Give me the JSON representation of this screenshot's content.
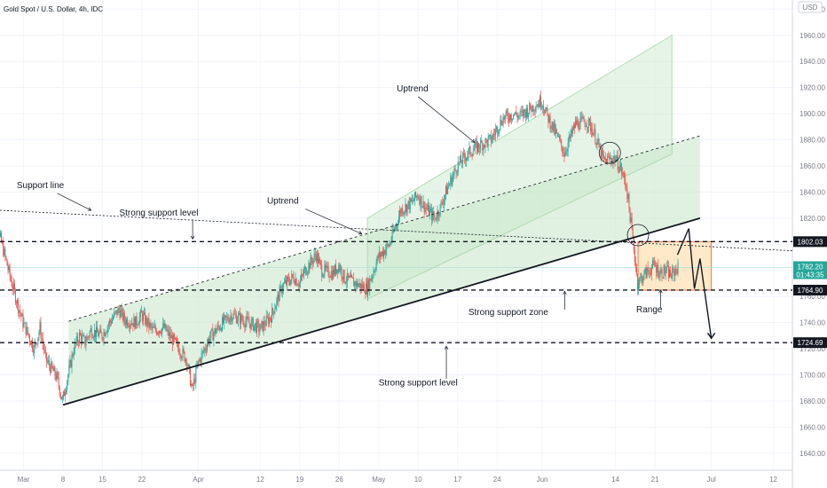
{
  "header": {
    "title": "Gold Spot / U.S. Dollar, 4h, IDC",
    "currency": "USD"
  },
  "chart_data": {
    "type": "candlestick",
    "symbol": "Gold Spot / U.S. Dollar",
    "timeframe": "4h",
    "ylim": [
      1627,
      1987
    ],
    "y_ticks": [
      1640,
      1660,
      1680,
      1700,
      1720,
      1740,
      1760,
      1780,
      1800,
      1820,
      1840,
      1860,
      1880,
      1900,
      1920,
      1940,
      1960,
      1980
    ],
    "x_ticks": [
      {
        "label": "Mar",
        "date": "2021-03-01"
      },
      {
        "label": "8",
        "date": "2021-03-08"
      },
      {
        "label": "15",
        "date": "2021-03-15"
      },
      {
        "label": "22",
        "date": "2021-03-22"
      },
      {
        "label": "Apr",
        "date": "2021-04-01"
      },
      {
        "label": "12",
        "date": "2021-04-12"
      },
      {
        "label": "19",
        "date": "2021-04-19"
      },
      {
        "label": "26",
        "date": "2021-04-26"
      },
      {
        "label": "May",
        "date": "2021-05-03"
      },
      {
        "label": "10",
        "date": "2021-05-10"
      },
      {
        "label": "17",
        "date": "2021-05-17"
      },
      {
        "label": "24",
        "date": "2021-05-24"
      },
      {
        "label": "Jun",
        "date": "2021-06-01"
      },
      {
        "label": "14",
        "date": "2021-06-14"
      },
      {
        "label": "21",
        "date": "2021-06-21"
      },
      {
        "label": "Jul",
        "date": "2021-07-01"
      },
      {
        "label": "12",
        "date": "2021-07-12"
      }
    ],
    "price_path": [
      [
        "2021-02-23",
        1810
      ],
      [
        "2021-02-25",
        1804
      ],
      [
        "2021-02-27",
        1770
      ],
      [
        "2021-03-01",
        1740
      ],
      [
        "2021-03-03",
        1720
      ],
      [
        "2021-03-04",
        1736
      ],
      [
        "2021-03-05",
        1712
      ],
      [
        "2021-03-07",
        1698
      ],
      [
        "2021-03-08",
        1680
      ],
      [
        "2021-03-09",
        1700
      ],
      [
        "2021-03-10",
        1720
      ],
      [
        "2021-03-11",
        1730
      ],
      [
        "2021-03-12",
        1725
      ],
      [
        "2021-03-13",
        1734
      ],
      [
        "2021-03-15",
        1730
      ],
      [
        "2021-03-16",
        1738
      ],
      [
        "2021-03-18",
        1750
      ],
      [
        "2021-03-19",
        1742
      ],
      [
        "2021-03-21",
        1740
      ],
      [
        "2021-03-22",
        1746
      ],
      [
        "2021-03-23",
        1740
      ],
      [
        "2021-03-24",
        1734
      ],
      [
        "2021-03-26",
        1736
      ],
      [
        "2021-03-28",
        1724
      ],
      [
        "2021-03-30",
        1712
      ],
      [
        "2021-03-31",
        1688
      ],
      [
        "2021-04-01",
        1708
      ],
      [
        "2021-04-03",
        1728
      ],
      [
        "2021-04-05",
        1738
      ],
      [
        "2021-04-07",
        1746
      ],
      [
        "2021-04-09",
        1742
      ],
      [
        "2021-04-11",
        1738
      ],
      [
        "2021-04-12",
        1735
      ],
      [
        "2021-04-14",
        1745
      ],
      [
        "2021-04-16",
        1768
      ],
      [
        "2021-04-18",
        1775
      ],
      [
        "2021-04-19",
        1770
      ],
      [
        "2021-04-20",
        1780
      ],
      [
        "2021-04-22",
        1792
      ],
      [
        "2021-04-23",
        1780
      ],
      [
        "2021-04-25",
        1778
      ],
      [
        "2021-04-26",
        1784
      ],
      [
        "2021-04-27",
        1774
      ],
      [
        "2021-04-29",
        1770
      ],
      [
        "2021-04-30",
        1768
      ],
      [
        "2021-05-01",
        1766
      ],
      [
        "2021-05-03",
        1790
      ],
      [
        "2021-05-05",
        1800
      ],
      [
        "2021-05-07",
        1826
      ],
      [
        "2021-05-09",
        1832
      ],
      [
        "2021-05-10",
        1838
      ],
      [
        "2021-05-11",
        1830
      ],
      [
        "2021-05-12",
        1825
      ],
      [
        "2021-05-13",
        1820
      ],
      [
        "2021-05-14",
        1828
      ],
      [
        "2021-05-15",
        1840
      ],
      [
        "2021-05-17",
        1860
      ],
      [
        "2021-05-19",
        1870
      ],
      [
        "2021-05-21",
        1876
      ],
      [
        "2021-05-23",
        1880
      ],
      [
        "2021-05-25",
        1896
      ],
      [
        "2021-05-27",
        1900
      ],
      [
        "2021-05-28",
        1898
      ],
      [
        "2021-05-30",
        1904
      ],
      [
        "2021-06-01",
        1910
      ],
      [
        "2021-06-02",
        1898
      ],
      [
        "2021-06-04",
        1880
      ],
      [
        "2021-06-05",
        1870
      ],
      [
        "2021-06-07",
        1892
      ],
      [
        "2021-06-09",
        1894
      ],
      [
        "2021-06-10",
        1888
      ],
      [
        "2021-06-11",
        1876
      ],
      [
        "2021-06-12",
        1864
      ],
      [
        "2021-06-14",
        1866
      ],
      [
        "2021-06-15",
        1858
      ],
      [
        "2021-06-16",
        1845
      ],
      [
        "2021-06-17",
        1810
      ],
      [
        "2021-06-18",
        1770
      ],
      [
        "2021-06-19",
        1776
      ],
      [
        "2021-06-21",
        1784
      ],
      [
        "2021-06-22",
        1778
      ],
      [
        "2021-06-23",
        1780
      ],
      [
        "2021-06-24",
        1776
      ],
      [
        "2021-06-25",
        1782
      ]
    ],
    "annotations": [
      {
        "text": "Support line",
        "date": "2021-03-04",
        "price": 1843
      },
      {
        "text": "Strong support level",
        "date": "2021-03-25",
        "price": 1822
      },
      {
        "text": "Uptrend",
        "date": "2021-04-16",
        "price": 1831
      },
      {
        "text": "Uptrend",
        "date": "2021-05-09",
        "price": 1917
      },
      {
        "text": "Strong support zone",
        "date": "2021-05-26",
        "price": 1746
      },
      {
        "text": "Range",
        "date": "2021-06-20",
        "price": 1748
      },
      {
        "text": "Strong support level",
        "date": "2021-05-10",
        "price": 1692
      }
    ],
    "horizontal_levels": [
      {
        "price": 1802.03,
        "label": "1802.03",
        "style": "dashed"
      },
      {
        "price": 1764.9,
        "label": "1764.90",
        "style": "dashed"
      },
      {
        "price": 1724.69,
        "label": "1724.69",
        "style": "dashed"
      }
    ],
    "last_price": {
      "price": 1782.2,
      "label": "1782.20",
      "countdown": "01:43:35",
      "color": "#26a69a"
    },
    "colors": {
      "up": "#26a69a",
      "down": "#ef5350",
      "channel_fill": "#c8e6c9",
      "range_fill": "#ffe0b2",
      "range_border": "#ff7043",
      "price_marker_bg": "#131722"
    }
  }
}
